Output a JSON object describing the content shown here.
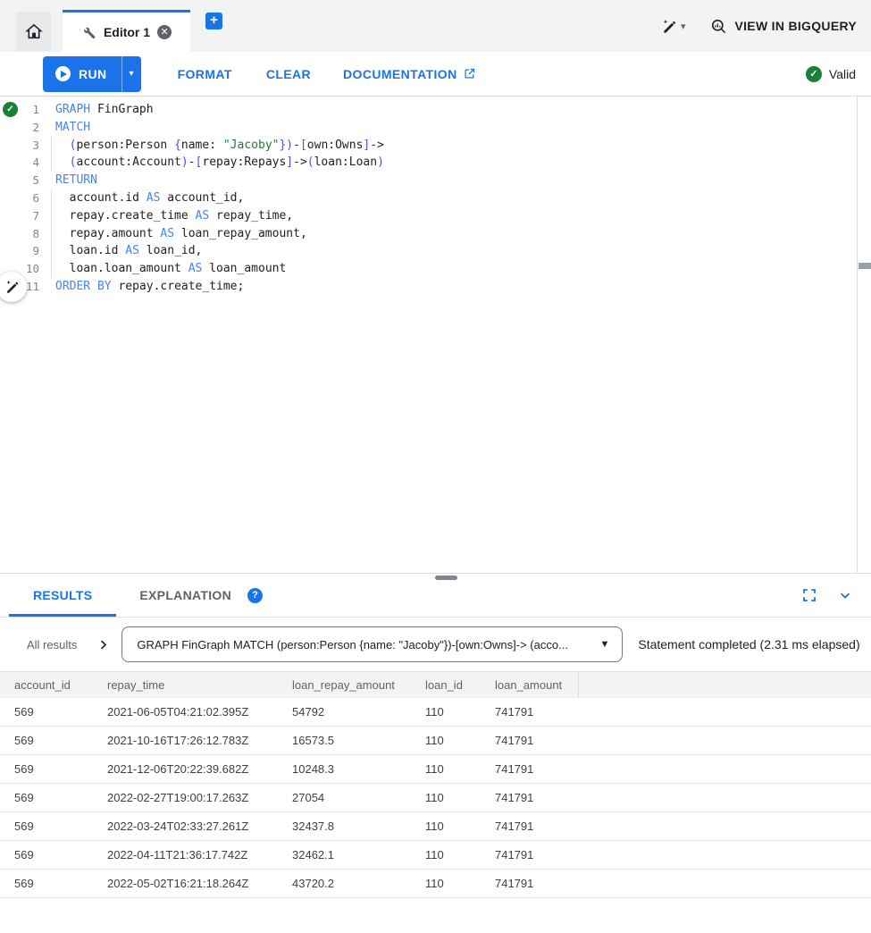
{
  "colors": {
    "accent": "#1a73e8",
    "valid_green": "#188038",
    "string_green": "#188038",
    "keyword_blue": "#4285f4",
    "bracket_indigo": "#4354e8"
  },
  "tabbar": {
    "editor_tab_label": "Editor 1",
    "close_icon": "✕",
    "plus_icon": "+",
    "caret_icon": "▾"
  },
  "topbar": {
    "view_in_bigquery": "VIEW IN BIGQUERY"
  },
  "toolbar": {
    "run": "RUN",
    "run_caret": "▾",
    "format": "FORMAT",
    "clear": "CLEAR",
    "documentation": "DOCUMENTATION",
    "valid": "Valid",
    "check_icon": "✓"
  },
  "editor": {
    "lines": [
      {
        "n": "1",
        "indent": false,
        "tokens": [
          [
            "kw",
            "GRAPH"
          ],
          [
            "pln",
            " FinGraph"
          ]
        ]
      },
      {
        "n": "2",
        "indent": false,
        "tokens": [
          [
            "kw",
            "MATCH"
          ]
        ]
      },
      {
        "n": "3",
        "indent": true,
        "tokens": [
          [
            "pln",
            "  "
          ],
          [
            "pun",
            "("
          ],
          [
            "pln",
            "person:Person "
          ],
          [
            "pun",
            "{"
          ],
          [
            "pln",
            "name: "
          ],
          [
            "str",
            "\"Jacoby\""
          ],
          [
            "pun",
            "})"
          ],
          [
            "pln",
            "-"
          ],
          [
            "pun",
            "["
          ],
          [
            "pln",
            "own:Owns"
          ],
          [
            "pun",
            "]"
          ],
          [
            "pln",
            "->"
          ]
        ]
      },
      {
        "n": "4",
        "indent": true,
        "tokens": [
          [
            "pln",
            "  "
          ],
          [
            "pun",
            "("
          ],
          [
            "pln",
            "account:Account"
          ],
          [
            "pun",
            ")"
          ],
          [
            "pln",
            "-"
          ],
          [
            "pun",
            "["
          ],
          [
            "pln",
            "repay:Repays"
          ],
          [
            "pun",
            "]"
          ],
          [
            "pln",
            "->"
          ],
          [
            "pun",
            "("
          ],
          [
            "pln",
            "loan:Loan"
          ],
          [
            "pun",
            ")"
          ]
        ]
      },
      {
        "n": "5",
        "indent": false,
        "tokens": [
          [
            "kw",
            "RETURN"
          ]
        ]
      },
      {
        "n": "6",
        "indent": true,
        "tokens": [
          [
            "pln",
            "  account.id "
          ],
          [
            "kw",
            "AS"
          ],
          [
            "pln",
            " account_id,"
          ]
        ]
      },
      {
        "n": "7",
        "indent": true,
        "tokens": [
          [
            "pln",
            "  repay.create_time "
          ],
          [
            "kw",
            "AS"
          ],
          [
            "pln",
            " repay_time,"
          ]
        ]
      },
      {
        "n": "8",
        "indent": true,
        "tokens": [
          [
            "pln",
            "  repay.amount "
          ],
          [
            "kw",
            "AS"
          ],
          [
            "pln",
            " loan_repay_amount,"
          ]
        ]
      },
      {
        "n": "9",
        "indent": true,
        "tokens": [
          [
            "pln",
            "  loan.id "
          ],
          [
            "kw",
            "AS"
          ],
          [
            "pln",
            " loan_id,"
          ]
        ]
      },
      {
        "n": "10",
        "indent": true,
        "tokens": [
          [
            "pln",
            "  loan.loan_amount "
          ],
          [
            "kw",
            "AS"
          ],
          [
            "pln",
            " loan_amount"
          ]
        ]
      },
      {
        "n": "11",
        "indent": false,
        "tokens": [
          [
            "kw",
            "ORDER BY"
          ],
          [
            "pln",
            " repay.create_time;"
          ]
        ]
      }
    ]
  },
  "results": {
    "tab_results": "RESULTS",
    "tab_explanation": "EXPLANATION",
    "help_icon": "?",
    "all_results_label": "All results",
    "query_dropdown": "GRAPH FinGraph MATCH (person:Person {name: \"Jacoby\"})-[own:Owns]-> (acco...",
    "dropdown_caret": "▼",
    "status": "Statement completed (2.31 ms elapsed)"
  },
  "table": {
    "columns": [
      "account_id",
      "repay_time",
      "loan_repay_amount",
      "loan_id",
      "loan_amount"
    ],
    "rows": [
      [
        "569",
        "2021-06-05T04:21:02.395Z",
        "54792",
        "110",
        "741791"
      ],
      [
        "569",
        "2021-10-16T17:26:12.783Z",
        "16573.5",
        "110",
        "741791"
      ],
      [
        "569",
        "2021-12-06T20:22:39.682Z",
        "10248.3",
        "110",
        "741791"
      ],
      [
        "569",
        "2022-02-27T19:00:17.263Z",
        "27054",
        "110",
        "741791"
      ],
      [
        "569",
        "2022-03-24T02:33:27.261Z",
        "32437.8",
        "110",
        "741791"
      ],
      [
        "569",
        "2022-04-11T21:36:17.742Z",
        "32462.1",
        "110",
        "741791"
      ],
      [
        "569",
        "2022-05-02T16:21:18.264Z",
        "43720.2",
        "110",
        "741791"
      ]
    ]
  }
}
